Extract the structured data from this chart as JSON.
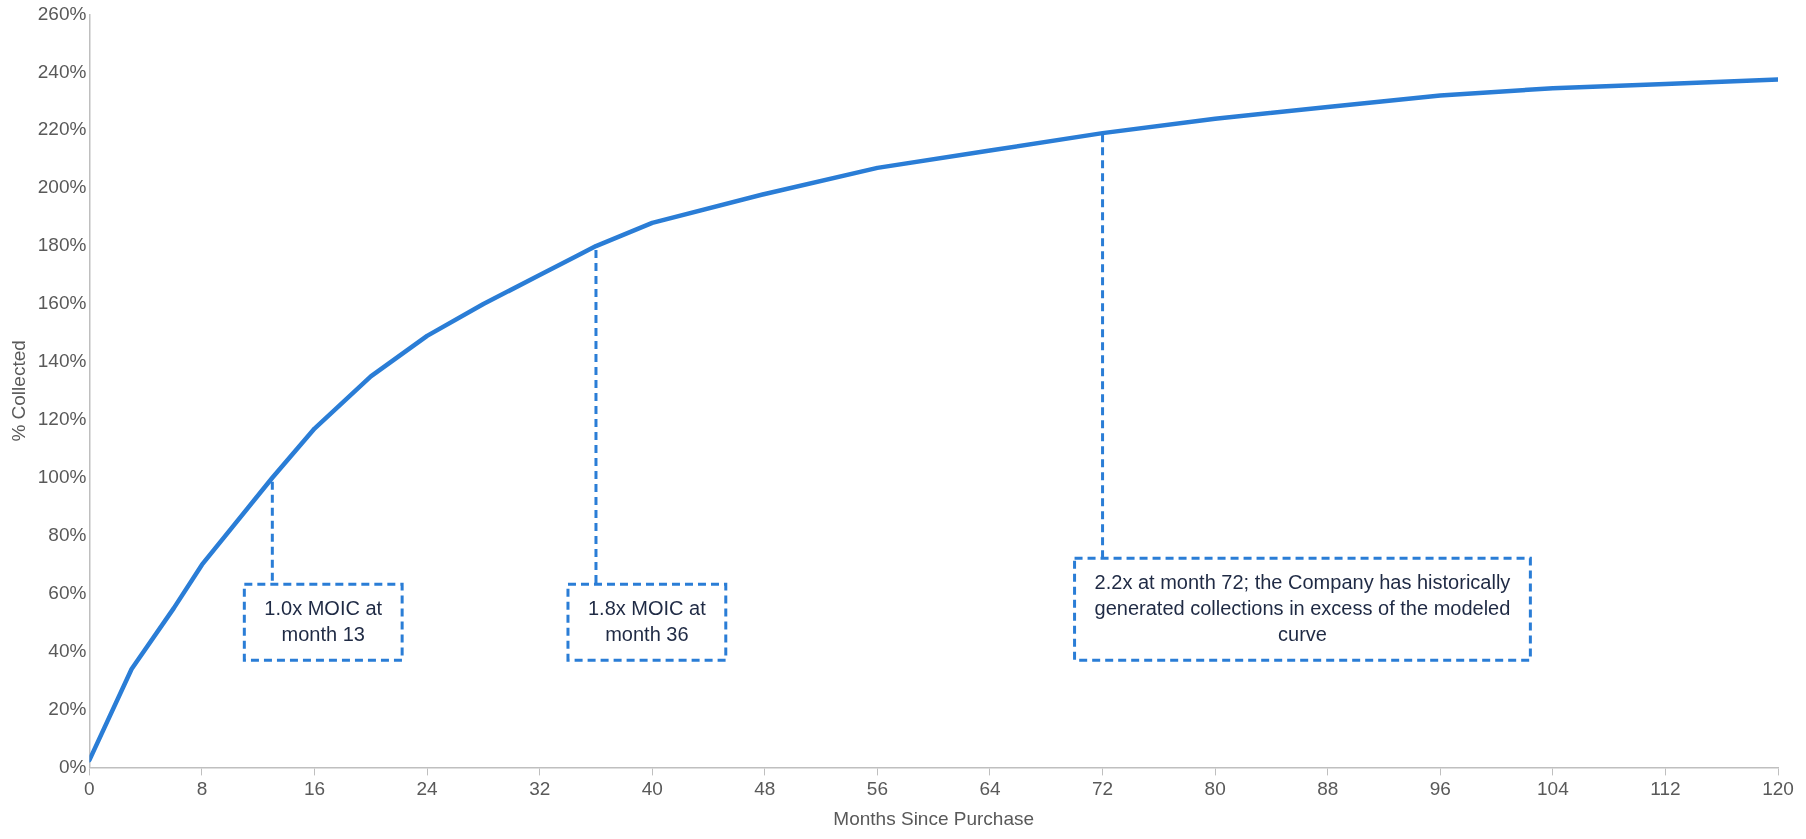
{
  "chart_data": {
    "type": "line",
    "xlabel": "Months Since Purchase",
    "ylabel": "% Collected",
    "x": [
      0,
      3,
      6,
      8,
      13,
      16,
      20,
      24,
      28,
      32,
      36,
      40,
      48,
      56,
      64,
      72,
      80,
      88,
      96,
      104,
      112,
      120
    ],
    "series": [
      {
        "color": "#2a7dd6",
        "values": [
          2.5,
          34,
          55,
          70,
          100,
          117,
          135,
          149,
          160,
          170,
          180,
          188,
          198,
          207,
          213,
          219,
          224,
          228,
          232,
          234.5,
          236,
          237.5
        ]
      }
    ],
    "xlim": [
      0,
      120
    ],
    "xticks": [
      0,
      8,
      16,
      24,
      32,
      40,
      48,
      56,
      64,
      72,
      80,
      88,
      96,
      104,
      112,
      120
    ],
    "ylim": [
      0,
      260
    ],
    "yticks": [
      {
        "value": 0,
        "label": "0%"
      },
      {
        "value": 20,
        "label": "20%"
      },
      {
        "value": 40,
        "label": "40%"
      },
      {
        "value": 60,
        "label": "60%"
      },
      {
        "value": 80,
        "label": "80%"
      },
      {
        "value": 100,
        "label": "100%"
      },
      {
        "value": 120,
        "label": "120%"
      },
      {
        "value": 140,
        "label": "140%"
      },
      {
        "value": 160,
        "label": "160%"
      },
      {
        "value": 180,
        "label": "180%"
      },
      {
        "value": 200,
        "label": "200%"
      },
      {
        "value": 220,
        "label": "220%"
      },
      {
        "value": 240,
        "label": "240%"
      },
      {
        "value": 260,
        "label": "260%"
      }
    ],
    "annotations": [
      {
        "text": "1.0x MOIC at month 13",
        "x": 13,
        "y": 100
      },
      {
        "text": "1.8x MOIC at month 36",
        "x": 36,
        "y": 180
      },
      {
        "text": "2.2x at month 72; the Company has historically generated collections in excess of the modeled curve",
        "x": 72,
        "y": 220
      }
    ],
    "grid": false,
    "legend": false,
    "marker": "none",
    "line_style": "solid"
  }
}
